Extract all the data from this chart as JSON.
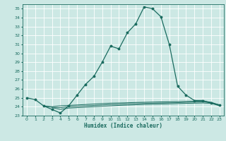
{
  "xlabel": "Humidex (Indice chaleur)",
  "ylabel": "",
  "bg_color": "#cce8e4",
  "line_color": "#1a6b5f",
  "grid_color": "#ffffff",
  "xlim": [
    -0.5,
    23.5
  ],
  "ylim": [
    23,
    35.5
  ],
  "xticks": [
    0,
    1,
    2,
    3,
    4,
    5,
    6,
    7,
    8,
    9,
    10,
    11,
    12,
    13,
    14,
    15,
    16,
    17,
    18,
    19,
    20,
    21,
    22,
    23
  ],
  "yticks": [
    23,
    24,
    25,
    26,
    27,
    28,
    29,
    30,
    31,
    32,
    33,
    34,
    35
  ],
  "main_x": [
    0,
    1,
    2,
    3,
    4,
    5,
    6,
    7,
    8,
    9,
    10,
    11,
    12,
    13,
    14,
    15,
    16,
    17,
    18,
    19,
    20,
    21,
    22,
    23
  ],
  "main_y": [
    25.0,
    24.8,
    24.1,
    23.7,
    23.3,
    24.1,
    25.3,
    26.5,
    27.4,
    29.0,
    30.8,
    30.5,
    32.3,
    33.3,
    35.2,
    35.0,
    34.1,
    31.0,
    26.3,
    25.3,
    24.7,
    24.7,
    24.4,
    24.2
  ],
  "line2_x": [
    2,
    3,
    4,
    5,
    6,
    7,
    8,
    9,
    10,
    11,
    12,
    13,
    14,
    15,
    16,
    17,
    18,
    19,
    20,
    21,
    22,
    23
  ],
  "line2_y": [
    24.1,
    24.0,
    24.1,
    24.15,
    24.2,
    24.25,
    24.3,
    24.35,
    24.4,
    24.42,
    24.45,
    24.48,
    24.5,
    24.52,
    24.54,
    24.56,
    24.58,
    24.6,
    24.62,
    24.65,
    24.5,
    24.2
  ],
  "line3_x": [
    2,
    3,
    4,
    5,
    6,
    7,
    8,
    9,
    10,
    11,
    12,
    13,
    14,
    15,
    16,
    17,
    18,
    19,
    20,
    21,
    22,
    23
  ],
  "line3_y": [
    24.05,
    23.95,
    23.9,
    24.0,
    24.05,
    24.1,
    24.15,
    24.2,
    24.25,
    24.28,
    24.32,
    24.35,
    24.38,
    24.4,
    24.42,
    24.44,
    24.46,
    24.5,
    24.52,
    24.55,
    24.45,
    24.15
  ],
  "line4_x": [
    3,
    4,
    5,
    6,
    7,
    8,
    9,
    10,
    11,
    12,
    13,
    14,
    15,
    16,
    17,
    18,
    19,
    20,
    21,
    22,
    23
  ],
  "line4_y": [
    23.9,
    23.7,
    23.85,
    23.9,
    23.95,
    24.0,
    24.05,
    24.1,
    24.15,
    24.18,
    24.22,
    24.25,
    24.28,
    24.3,
    24.32,
    24.35,
    24.38,
    24.4,
    24.42,
    24.38,
    24.1
  ]
}
